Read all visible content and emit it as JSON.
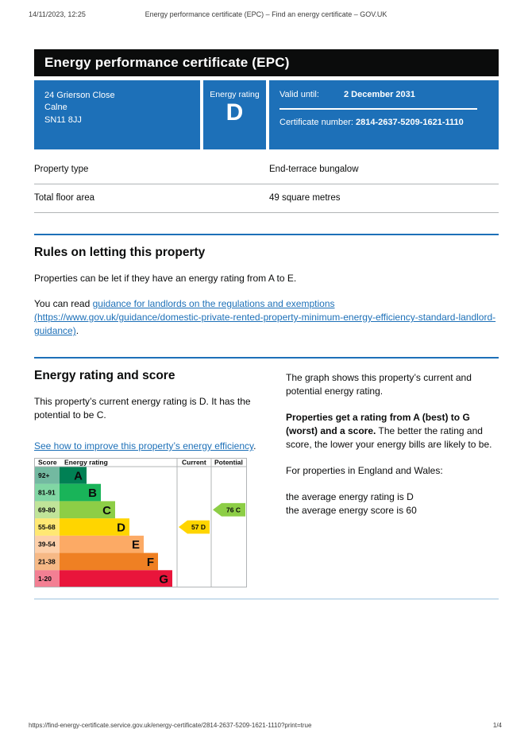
{
  "print_header": {
    "datetime": "14/11/2023, 12:25",
    "title": "Energy performance certificate (EPC) – Find an energy certificate – GOV.UK"
  },
  "banner": {
    "title": "Energy performance certificate (EPC)"
  },
  "summary": {
    "address_lines": [
      "24 Grierson Close",
      "Calne",
      "SN11 8JJ"
    ],
    "energy_rating_label": "Energy rating",
    "energy_rating": "D",
    "valid_until_label": "Valid until:",
    "valid_until": "2 December 2031",
    "certificate_number_label": "Certificate number:",
    "certificate_number": "2814-2637-5209-1621-1110"
  },
  "facts": [
    {
      "label": "Property type",
      "value": "End-terrace bungalow"
    },
    {
      "label": "Total floor area",
      "value": "49 square metres"
    }
  ],
  "letting_rules": {
    "heading": "Rules on letting this property",
    "para1": "Properties can be let if they have an energy rating from A to E.",
    "para2_prefix": "You can read ",
    "link_text": "guidance for landlords on the regulations and exemptions (https://www.gov.uk/guidance/domestic-private-rented-property-minimum-energy-efficiency-standard-landlord-guidance)",
    "para2_suffix": "."
  },
  "rating_section": {
    "heading": "Energy rating and score",
    "para1": "This property’s current energy rating is D. It has the potential to be C.",
    "improve_link_text": "See how to improve this property’s energy efficiency",
    "improve_link_suffix": ".",
    "right_para1": "The graph shows this property’s current and potential energy rating.",
    "right_para2_bold": "Properties get a rating from A (best) to G (worst) and a score.",
    "right_para2_rest": " The better the rating and score, the lower your energy bills are likely to be.",
    "right_para3": "For properties in England and Wales:",
    "avg_rating_line": "the average energy rating is D",
    "avg_score_line": "the average energy score is 60"
  },
  "chart_data": {
    "type": "epc-rating-bands",
    "headers": {
      "score": "Score",
      "rating": "Energy rating",
      "current": "Current",
      "potential": "Potential"
    },
    "bands": [
      {
        "letter": "A",
        "range": "92+",
        "color": "#008054"
      },
      {
        "letter": "B",
        "range": "81-91",
        "color": "#19b459"
      },
      {
        "letter": "C",
        "range": "69-80",
        "color": "#8dce46"
      },
      {
        "letter": "D",
        "range": "55-68",
        "color": "#ffd500"
      },
      {
        "letter": "E",
        "range": "39-54",
        "color": "#fcaa65"
      },
      {
        "letter": "F",
        "range": "21-38",
        "color": "#ef8023"
      },
      {
        "letter": "G",
        "range": "1-20",
        "color": "#e9153b"
      }
    ],
    "current": {
      "score": 57,
      "band": "D",
      "color": "#ffd500"
    },
    "potential": {
      "score": 76,
      "band": "C",
      "color": "#8dce46"
    }
  },
  "page_footer": {
    "url": "https://find-energy-certificate.service.gov.uk/energy-certificate/2814-2637-5209-1621-1110?print=true",
    "page": "1/4"
  },
  "colors": {
    "brand_blue": "#1d70b8",
    "banner_black": "#0b0c0c",
    "border_gray": "#b1b4b6",
    "rule_light_blue": "#9ec3de"
  }
}
